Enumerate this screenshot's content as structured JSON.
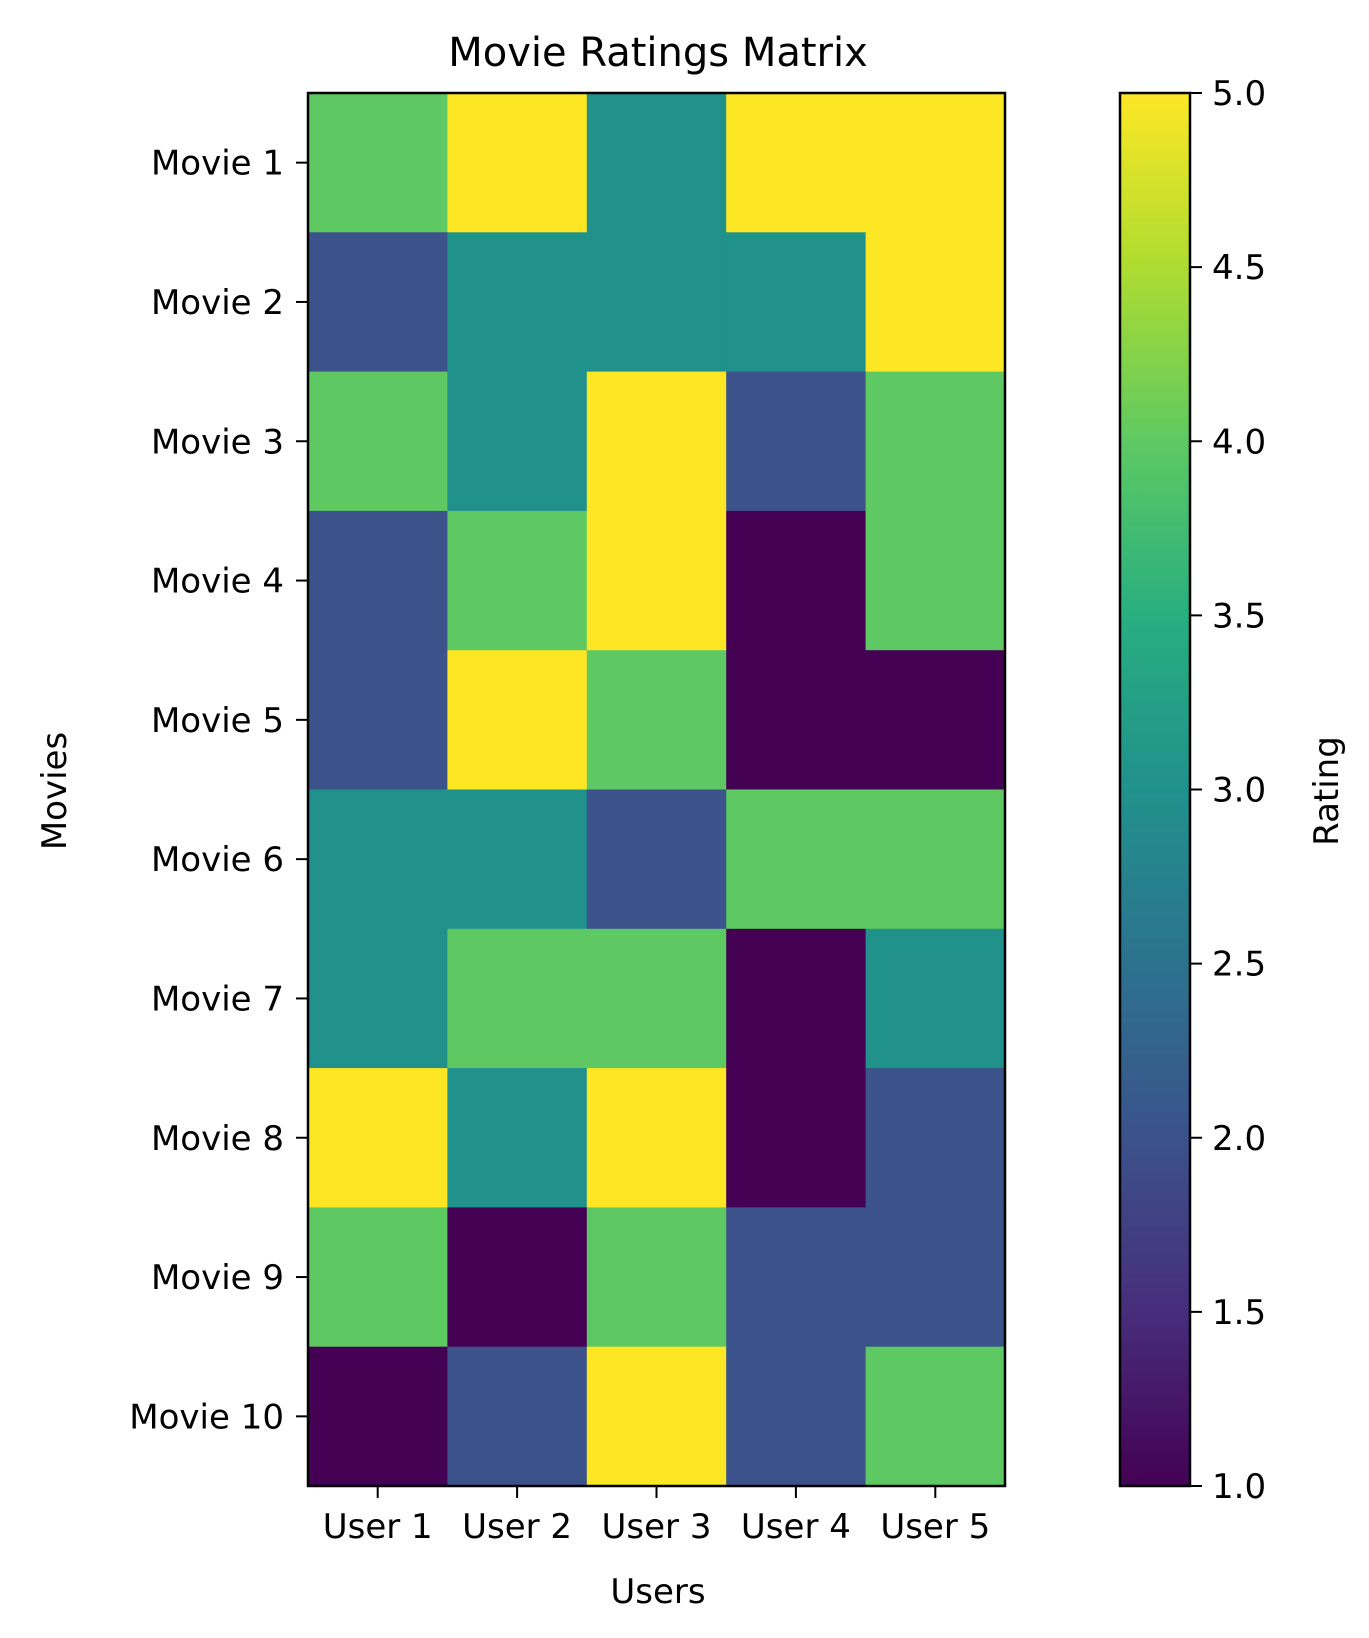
{
  "chart_data": {
    "type": "heatmap",
    "title": "Movie Ratings Matrix",
    "xlabel": "Users",
    "ylabel": "Movies",
    "x_categories": [
      "User 1",
      "User 2",
      "User 3",
      "User 4",
      "User 5"
    ],
    "y_categories": [
      "Movie 1",
      "Movie 2",
      "Movie 3",
      "Movie 4",
      "Movie 5",
      "Movie 6",
      "Movie 7",
      "Movie 8",
      "Movie 9",
      "Movie 10"
    ],
    "values": [
      [
        4,
        5,
        3,
        5,
        5
      ],
      [
        2,
        3,
        3,
        3,
        5
      ],
      [
        4,
        3,
        5,
        2,
        4
      ],
      [
        2,
        4,
        5,
        1,
        4
      ],
      [
        2,
        5,
        4,
        1,
        1
      ],
      [
        3,
        3,
        2,
        4,
        4
      ],
      [
        3,
        4,
        4,
        1,
        3
      ],
      [
        5,
        3,
        5,
        1,
        2
      ],
      [
        4,
        1,
        4,
        2,
        2
      ],
      [
        1,
        2,
        5,
        2,
        4
      ]
    ],
    "colorbar": {
      "label": "Rating",
      "colormap": "viridis",
      "range": [
        1.0,
        5.0
      ],
      "ticks": [
        "1.0",
        "1.5",
        "2.0",
        "2.5",
        "3.0",
        "3.5",
        "4.0",
        "4.5",
        "5.0"
      ]
    }
  }
}
